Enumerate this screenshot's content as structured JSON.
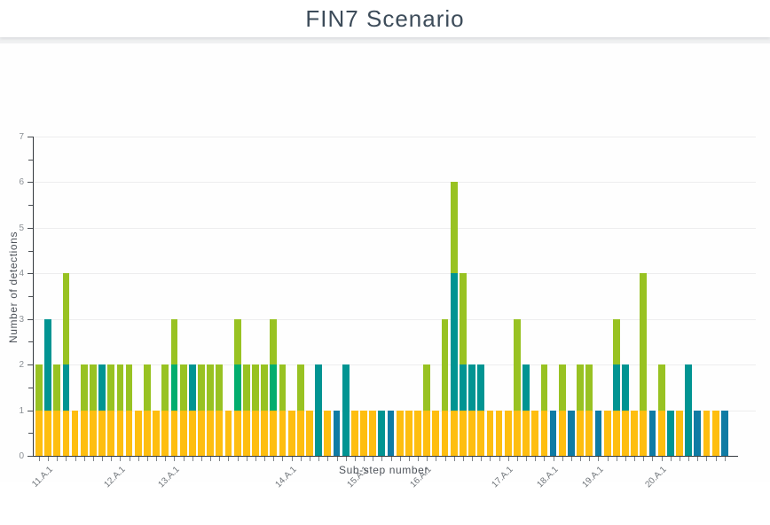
{
  "header": {
    "title": "FIN7 Scenario"
  },
  "chart_data": {
    "type": "bar",
    "stacked": true,
    "title": "FIN7 Scenario",
    "xlabel": "Sub-step number",
    "ylabel": "Number of detections",
    "ylim": [
      0,
      7
    ],
    "y_major_ticks": [
      0,
      1,
      2,
      3,
      4,
      5,
      6,
      7
    ],
    "y_minor_tick_step": 0.5,
    "grid": "horizontal",
    "legend": "none",
    "colors": {
      "y": "#FEBE10",
      "g": "#98C222",
      "e": "#02AD6E",
      "t": "#019492",
      "b": "#0F7BA4"
    },
    "color_names": {
      "y": "yellow-segment",
      "g": "light-green-segment",
      "e": "emerald-segment",
      "t": "teal-segment",
      "b": "blue-segment"
    },
    "x_tick_labels": [
      {
        "bar_index": 1,
        "label": "11.A.1"
      },
      {
        "bar_index": 9,
        "label": "12.A.1"
      },
      {
        "bar_index": 15,
        "label": "13.A.1"
      },
      {
        "bar_index": 28,
        "label": "14.A.1"
      },
      {
        "bar_index": 36,
        "label": "15.A.1"
      },
      {
        "bar_index": 43,
        "label": "16.A.1"
      },
      {
        "bar_index": 52,
        "label": "17.A.1"
      },
      {
        "bar_index": 57,
        "label": "18.A.1"
      },
      {
        "bar_index": 62,
        "label": "19.A.1"
      },
      {
        "bar_index": 69,
        "label": "20.A.1"
      }
    ],
    "bars": [
      [
        [
          "y",
          1
        ],
        [
          "g",
          1
        ]
      ],
      [
        [
          "y",
          1
        ],
        [
          "t",
          2
        ]
      ],
      [
        [
          "y",
          1
        ],
        [
          "g",
          1
        ]
      ],
      [
        [
          "y",
          1
        ],
        [
          "t",
          1
        ],
        [
          "g",
          2
        ]
      ],
      [
        [
          "y",
          1
        ]
      ],
      [
        [
          "y",
          1
        ],
        [
          "g",
          1
        ]
      ],
      [
        [
          "y",
          1
        ],
        [
          "g",
          1
        ]
      ],
      [
        [
          "y",
          1
        ],
        [
          "t",
          1
        ]
      ],
      [
        [
          "y",
          1
        ],
        [
          "g",
          1
        ]
      ],
      [
        [
          "y",
          1
        ],
        [
          "g",
          1
        ]
      ],
      [
        [
          "y",
          1
        ],
        [
          "g",
          1
        ]
      ],
      [
        [
          "y",
          1
        ]
      ],
      [
        [
          "y",
          1
        ],
        [
          "g",
          1
        ]
      ],
      [
        [
          "y",
          1
        ]
      ],
      [
        [
          "y",
          1
        ],
        [
          "g",
          1
        ]
      ],
      [
        [
          "y",
          1
        ],
        [
          "e",
          1
        ],
        [
          "g",
          1
        ]
      ],
      [
        [
          "y",
          1
        ],
        [
          "g",
          1
        ]
      ],
      [
        [
          "y",
          1
        ],
        [
          "t",
          1
        ]
      ],
      [
        [
          "y",
          1
        ],
        [
          "g",
          1
        ]
      ],
      [
        [
          "y",
          1
        ],
        [
          "g",
          1
        ]
      ],
      [
        [
          "y",
          1
        ],
        [
          "g",
          1
        ]
      ],
      [
        [
          "y",
          1
        ]
      ],
      [
        [
          "y",
          1
        ],
        [
          "e",
          1
        ],
        [
          "g",
          1
        ]
      ],
      [
        [
          "y",
          1
        ],
        [
          "g",
          1
        ]
      ],
      [
        [
          "y",
          1
        ],
        [
          "g",
          1
        ]
      ],
      [
        [
          "y",
          1
        ],
        [
          "g",
          1
        ]
      ],
      [
        [
          "y",
          1
        ],
        [
          "e",
          1
        ],
        [
          "g",
          1
        ]
      ],
      [
        [
          "y",
          1
        ],
        [
          "g",
          1
        ]
      ],
      [
        [
          "y",
          1
        ]
      ],
      [
        [
          "y",
          1
        ],
        [
          "g",
          1
        ]
      ],
      [
        [
          "y",
          1
        ]
      ],
      [
        [
          "t",
          2
        ]
      ],
      [
        [
          "y",
          1
        ]
      ],
      [
        [
          "b",
          1
        ]
      ],
      [
        [
          "t",
          2
        ]
      ],
      [
        [
          "y",
          1
        ]
      ],
      [
        [
          "y",
          1
        ]
      ],
      [
        [
          "y",
          1
        ]
      ],
      [
        [
          "t",
          1
        ]
      ],
      [
        [
          "b",
          1
        ]
      ],
      [
        [
          "y",
          1
        ]
      ],
      [
        [
          "y",
          1
        ]
      ],
      [
        [
          "y",
          1
        ]
      ],
      [
        [
          "y",
          1
        ],
        [
          "g",
          1
        ]
      ],
      [
        [
          "y",
          1
        ]
      ],
      [
        [
          "y",
          1
        ],
        [
          "g",
          2
        ]
      ],
      [
        [
          "y",
          1
        ],
        [
          "t",
          3
        ],
        [
          "g",
          2
        ]
      ],
      [
        [
          "y",
          1
        ],
        [
          "t",
          1
        ],
        [
          "g",
          2
        ]
      ],
      [
        [
          "y",
          1
        ],
        [
          "t",
          1
        ]
      ],
      [
        [
          "y",
          1
        ],
        [
          "t",
          1
        ]
      ],
      [
        [
          "y",
          1
        ]
      ],
      [
        [
          "y",
          1
        ]
      ],
      [
        [
          "y",
          1
        ]
      ],
      [
        [
          "y",
          1
        ],
        [
          "g",
          2
        ]
      ],
      [
        [
          "y",
          1
        ],
        [
          "t",
          1
        ]
      ],
      [
        [
          "y",
          1
        ]
      ],
      [
        [
          "y",
          1
        ],
        [
          "g",
          1
        ]
      ],
      [
        [
          "b",
          1
        ]
      ],
      [
        [
          "y",
          1
        ],
        [
          "g",
          1
        ]
      ],
      [
        [
          "b",
          1
        ]
      ],
      [
        [
          "y",
          1
        ],
        [
          "g",
          1
        ]
      ],
      [
        [
          "y",
          1
        ],
        [
          "g",
          1
        ]
      ],
      [
        [
          "b",
          1
        ]
      ],
      [
        [
          "y",
          1
        ]
      ],
      [
        [
          "y",
          1
        ],
        [
          "t",
          1
        ],
        [
          "g",
          1
        ]
      ],
      [
        [
          "y",
          1
        ],
        [
          "t",
          1
        ]
      ],
      [
        [
          "y",
          1
        ]
      ],
      [
        [
          "y",
          1
        ],
        [
          "g",
          3
        ]
      ],
      [
        [
          "b",
          1
        ]
      ],
      [
        [
          "y",
          1
        ],
        [
          "g",
          1
        ]
      ],
      [
        [
          "t",
          1
        ]
      ],
      [
        [
          "y",
          1
        ]
      ],
      [
        [
          "t",
          2
        ]
      ],
      [
        [
          "b",
          1
        ]
      ],
      [
        [
          "y",
          1
        ]
      ],
      [
        [
          "y",
          1
        ]
      ],
      [
        [
          "b",
          1
        ]
      ]
    ]
  }
}
